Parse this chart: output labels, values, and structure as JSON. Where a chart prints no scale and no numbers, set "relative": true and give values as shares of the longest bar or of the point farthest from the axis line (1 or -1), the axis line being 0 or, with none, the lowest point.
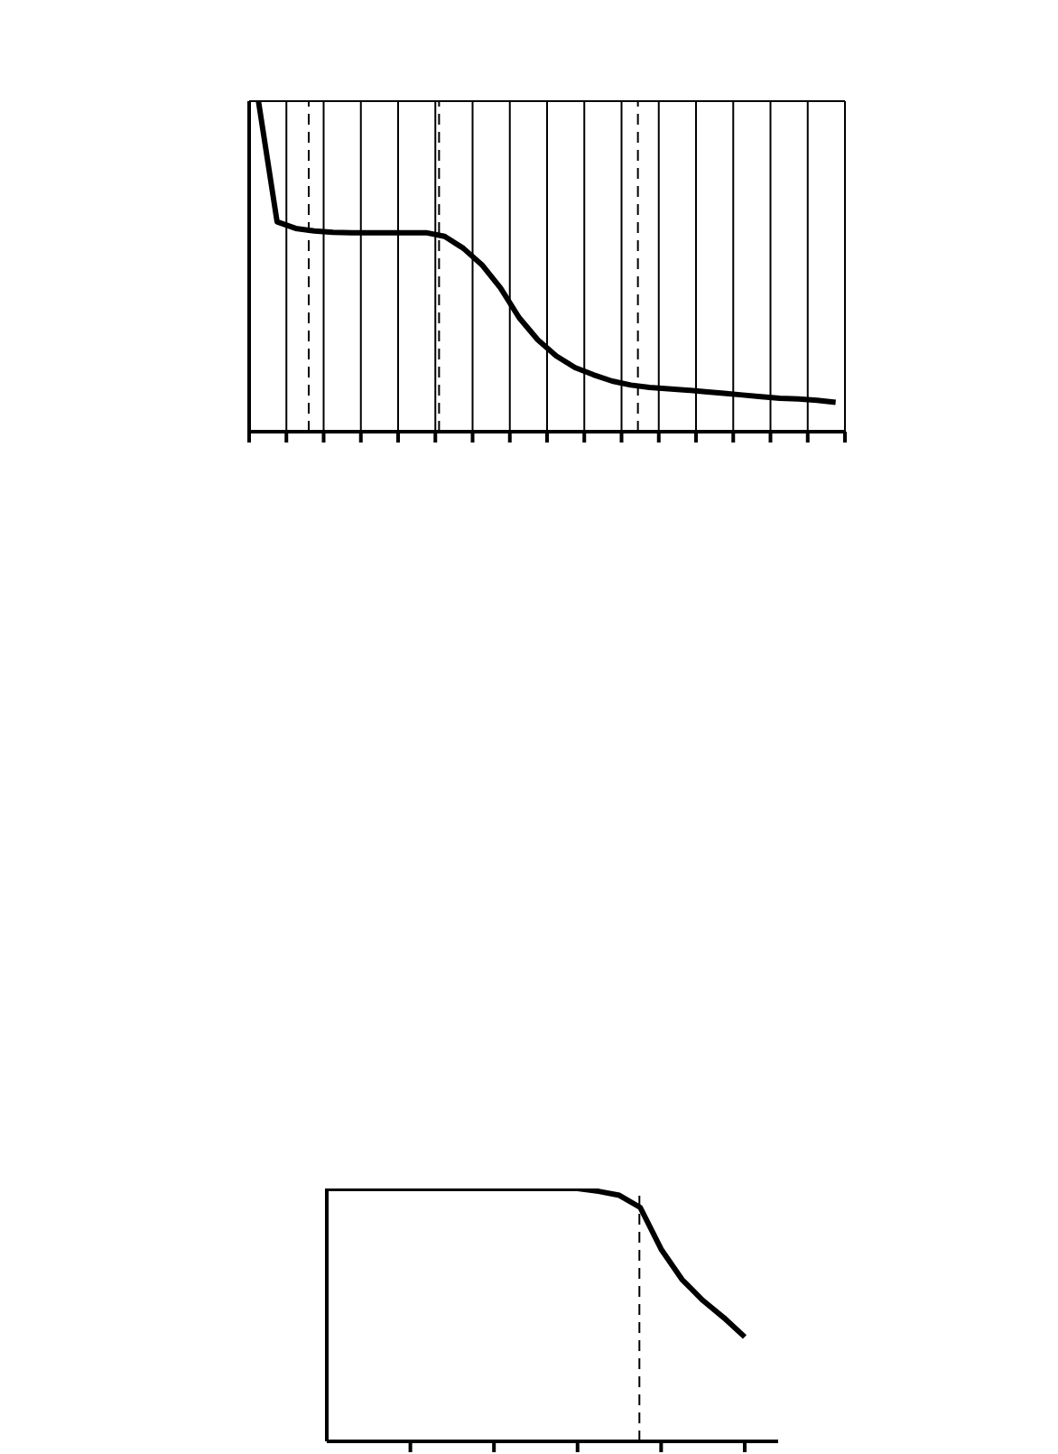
{
  "chart_data": [
    {
      "type": "line",
      "relative": true,
      "categories": [
        null,
        null,
        null,
        null,
        null,
        null,
        null,
        null,
        null,
        null,
        null,
        null,
        null,
        null,
        null,
        null,
        null,
        null,
        null,
        null,
        null,
        null,
        null,
        null,
        null,
        null,
        null,
        null,
        null,
        null,
        null,
        null
      ],
      "series": [
        {
          "color": "#000000",
          "values": [
            1.0,
            0.635,
            0.615,
            0.607,
            0.603,
            0.602,
            0.602,
            0.602,
            0.602,
            0.602,
            0.591,
            0.555,
            0.505,
            0.435,
            0.345,
            0.278,
            0.229,
            0.194,
            0.172,
            0.153,
            0.141,
            0.134,
            0.13,
            0.126,
            0.121,
            0.116,
            0.111,
            0.106,
            0.101,
            0.099,
            0.095,
            0.089
          ]
        }
      ],
      "tick_labels": false,
      "grid": true
    },
    {
      "type": "line",
      "relative": true,
      "categories": [
        null,
        null,
        null,
        null,
        null,
        null,
        null,
        null,
        null,
        null,
        null,
        null,
        null,
        null,
        null,
        null,
        null,
        null,
        null,
        null,
        null
      ],
      "series": [
        {
          "color": "#000000",
          "values": [
            1,
            1,
            1,
            1,
            1,
            1,
            1,
            1,
            1,
            1,
            1,
            1,
            1,
            0.989,
            0.973,
            0.925,
            0.76,
            0.64,
            0.557,
            0.489,
            0.413
          ]
        }
      ],
      "tick_labels": false
    }
  ]
}
